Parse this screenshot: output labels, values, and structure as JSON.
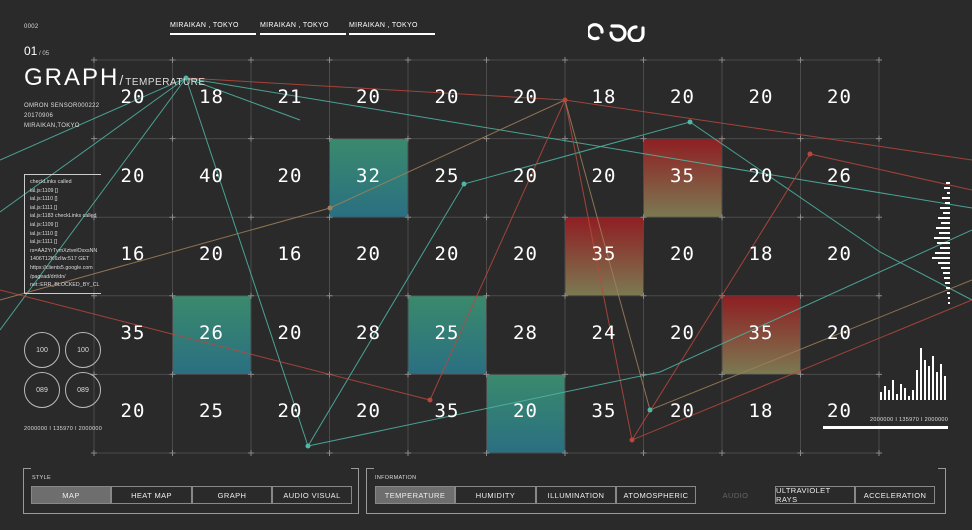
{
  "header": {
    "page_code": "0002",
    "page_index": "01",
    "page_total": "05",
    "title": "GRAPH",
    "subtitle": "TEMPERATURE",
    "sensor_id": "OMRON SENSOR000222",
    "date": "20170906",
    "site": "MIRAIKAN,TOKYO",
    "locations": [
      "MIRAIKAN , TOKYO",
      "MIRAIKAN , TOKYO",
      "MIRAIKAN , TOKYO"
    ],
    "logo_text": "ϱɔƆ"
  },
  "log": [
    "checkLinks called",
    "ial.js:1109 []",
    "ial.js:1110 []",
    "ial.js:1111 []",
    "ial.js:1183 checkLinks called",
    "ial.js:1109 []",
    "ial.js:1110 []",
    "ial.js:1111 []",
    "rs=AA2YrTvmXztvelOxxsNN",
    "1406T12K6zIlw:517 GET",
    "https://clients5.google.com",
    "/pagead/drt/dn/",
    "net::ERR_BLOCKED_BY_CL"
  ],
  "circles": [
    "100",
    "100",
    "089",
    "089"
  ],
  "left_readout": "2000000 I 135970 I 2000000",
  "right_readout": "2000000 I 135970 I 2000000",
  "grid_values": [
    [
      "20",
      "18",
      "21",
      "20",
      "20",
      "20",
      "18",
      "20",
      "20",
      "20"
    ],
    [
      "20",
      "40",
      "20",
      "32",
      "25",
      "20",
      "20",
      "35",
      "20",
      "26"
    ],
    [
      "16",
      "20",
      "16",
      "20",
      "20",
      "20",
      "35",
      "20",
      "18",
      "20"
    ],
    [
      "35",
      "26",
      "20",
      "28",
      "25",
      "28",
      "24",
      "20",
      "35",
      "20"
    ],
    [
      "20",
      "25",
      "20",
      "20",
      "35",
      "20",
      "35",
      "20",
      "18",
      "20"
    ]
  ],
  "highlight_cells": [
    {
      "row": 1,
      "col": 3,
      "tone": "cool"
    },
    {
      "row": 1,
      "col": 7,
      "tone": "hot"
    },
    {
      "row": 2,
      "col": 6,
      "tone": "hot"
    },
    {
      "row": 3,
      "col": 1,
      "tone": "cool"
    },
    {
      "row": 3,
      "col": 4,
      "tone": "cool"
    },
    {
      "row": 3,
      "col": 8,
      "tone": "hot"
    },
    {
      "row": 4,
      "col": 5,
      "tone": "cool"
    }
  ],
  "colors": {
    "background": "#2a2a2a",
    "cool_top": "#3a8a6c",
    "cool_bottom": "#2a7080",
    "hot_top": "#8f1e22",
    "hot_bottom": "#7a7a52",
    "line_teal": "#4fb7a6",
    "line_red": "#b8483c",
    "line_tan": "#a0805a"
  },
  "style_bar": {
    "label": "STYLE",
    "buttons": [
      "MAP",
      "HEAT MAP",
      "GRAPH",
      "AUDIO VISUAL"
    ],
    "active": "MAP"
  },
  "info_bar": {
    "label": "INFORMATION",
    "buttons": [
      "TEMPERATURE",
      "HUMIDITY",
      "ILLUMINATION",
      "ATOMOSPHERIC",
      "AUDIO",
      "ULTRAVIOLET RAYS",
      "ACCELERATION"
    ],
    "active": "TEMPERATURE",
    "disabled": "AUDIO"
  }
}
